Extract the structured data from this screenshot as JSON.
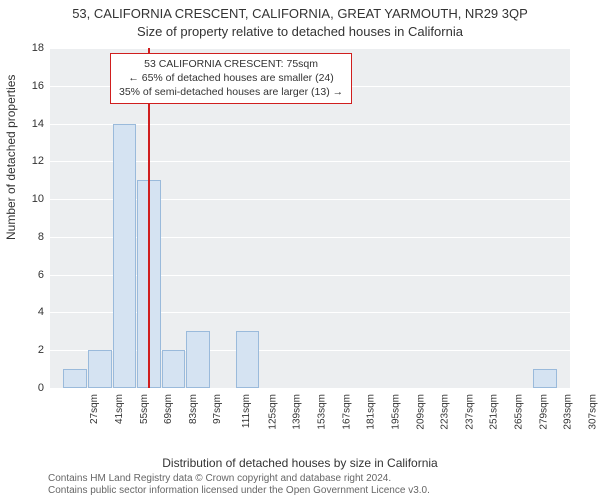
{
  "title": {
    "line1": "53, CALIFORNIA CRESCENT, CALIFORNIA, GREAT YARMOUTH, NR29 3QP",
    "line2": "Size of property relative to detached houses in California"
  },
  "chart": {
    "type": "histogram",
    "ylabel": "Number of detached properties",
    "xlabel": "Distribution of detached houses by size in California",
    "ylim": [
      0,
      18
    ],
    "ytick_step": 2,
    "background_color": "#eceef0",
    "grid_color": "#ffffff",
    "bar_fill": "#d5e3f2",
    "bar_border": "#9abadb",
    "marker_color": "#d01e1e",
    "marker_value": 75,
    "x_range": [
      20,
      315
    ],
    "x_tick_start": 27,
    "x_tick_step": 14,
    "x_tick_count": 21,
    "x_tick_suffix": "sqm",
    "bar_width_units": 14,
    "bars": [
      {
        "x_start": 27,
        "count": 1
      },
      {
        "x_start": 41,
        "count": 2
      },
      {
        "x_start": 55,
        "count": 14
      },
      {
        "x_start": 69,
        "count": 11
      },
      {
        "x_start": 83,
        "count": 2
      },
      {
        "x_start": 97,
        "count": 3
      },
      {
        "x_start": 111,
        "count": 0
      },
      {
        "x_start": 125,
        "count": 3
      },
      {
        "x_start": 139,
        "count": 0
      },
      {
        "x_start": 153,
        "count": 0
      },
      {
        "x_start": 167,
        "count": 0
      },
      {
        "x_start": 181,
        "count": 0
      },
      {
        "x_start": 196,
        "count": 0
      },
      {
        "x_start": 210,
        "count": 0
      },
      {
        "x_start": 224,
        "count": 0
      },
      {
        "x_start": 238,
        "count": 0
      },
      {
        "x_start": 252,
        "count": 0
      },
      {
        "x_start": 266,
        "count": 0
      },
      {
        "x_start": 280,
        "count": 0
      },
      {
        "x_start": 294,
        "count": 1
      },
      {
        "x_start": 308,
        "count": 0
      }
    ],
    "yticks": [
      0,
      2,
      4,
      6,
      8,
      10,
      12,
      14,
      16,
      18
    ]
  },
  "annotation": {
    "line1": "53 CALIFORNIA CRESCENT: 75sqm",
    "line2": "← 65% of detached houses are smaller (24)",
    "line3": "35% of semi-detached houses are larger (13) →"
  },
  "attribution": {
    "line1": "Contains HM Land Registry data © Crown copyright and database right 2024.",
    "line2": "Contains public sector information licensed under the Open Government Licence v3.0."
  }
}
